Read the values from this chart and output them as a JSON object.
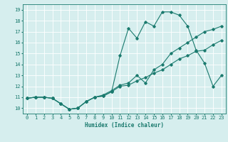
{
  "title": "",
  "xlabel": "Humidex (Indice chaleur)",
  "ylabel": "",
  "background_color": "#d6eeee",
  "grid_color": "#b0d8d8",
  "line_color": "#1a7a6e",
  "xlim": [
    -0.5,
    23.5
  ],
  "ylim": [
    9.5,
    19.5
  ],
  "xticks": [
    0,
    1,
    2,
    3,
    4,
    5,
    6,
    7,
    8,
    9,
    10,
    11,
    12,
    13,
    14,
    15,
    16,
    17,
    18,
    19,
    20,
    21,
    22,
    23
  ],
  "yticks": [
    10,
    11,
    12,
    13,
    14,
    15,
    16,
    17,
    18,
    19
  ],
  "line1_x": [
    0,
    1,
    2,
    3,
    4,
    5,
    6,
    7,
    8,
    9,
    10,
    11,
    12,
    13,
    14,
    15,
    16,
    17,
    18,
    19,
    20,
    21,
    22,
    23
  ],
  "line1_y": [
    10.9,
    11.0,
    11.0,
    10.9,
    10.4,
    9.9,
    10.0,
    10.6,
    11.0,
    11.1,
    11.5,
    14.8,
    17.3,
    16.4,
    17.9,
    17.5,
    18.8,
    18.8,
    18.5,
    17.5,
    15.3,
    14.1,
    12.0,
    13.0
  ],
  "line2_x": [
    0,
    1,
    2,
    3,
    4,
    5,
    6,
    7,
    8,
    9,
    10,
    11,
    12,
    13,
    14,
    15,
    16,
    17,
    18,
    19,
    20,
    21,
    22,
    23
  ],
  "line2_y": [
    10.9,
    11.0,
    11.0,
    10.9,
    10.4,
    9.9,
    10.0,
    10.6,
    11.0,
    11.2,
    11.6,
    12.1,
    12.3,
    13.0,
    12.3,
    13.5,
    14.0,
    15.0,
    15.5,
    16.0,
    16.5,
    17.0,
    17.2,
    17.5
  ],
  "line3_x": [
    0,
    1,
    2,
    3,
    4,
    5,
    6,
    7,
    8,
    9,
    10,
    11,
    12,
    13,
    14,
    15,
    16,
    17,
    18,
    19,
    20,
    21,
    22,
    23
  ],
  "line3_y": [
    10.9,
    11.0,
    11.0,
    10.9,
    10.4,
    9.9,
    10.0,
    10.6,
    11.0,
    11.1,
    11.5,
    12.0,
    12.1,
    12.5,
    12.8,
    13.2,
    13.5,
    14.0,
    14.5,
    14.8,
    15.2,
    15.3,
    15.8,
    16.2
  ]
}
